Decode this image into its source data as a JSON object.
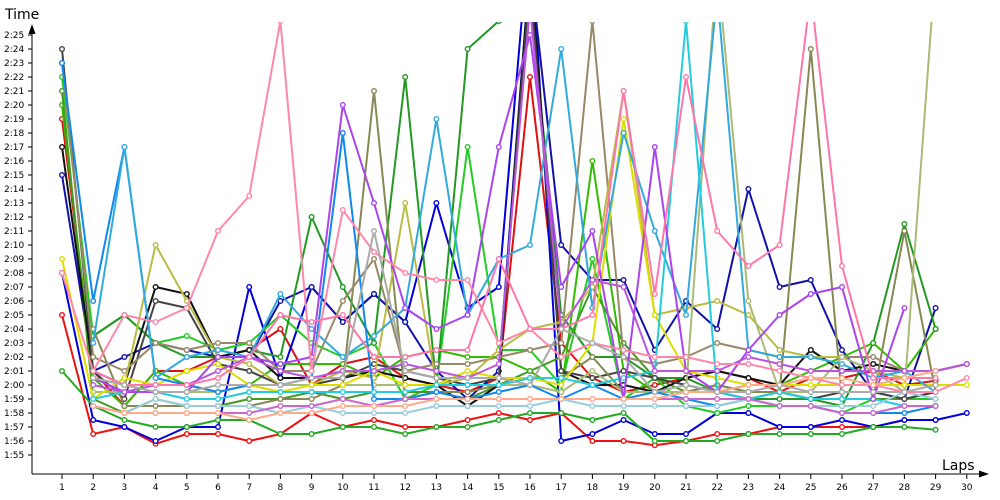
{
  "chart_data": {
    "type": "line",
    "ylabel": "Time",
    "xlabel": "Laps",
    "x": [
      1,
      2,
      3,
      4,
      5,
      6,
      7,
      8,
      9,
      10,
      11,
      12,
      13,
      14,
      15,
      16,
      17,
      18,
      19,
      20,
      21,
      22,
      23,
      24,
      25,
      26,
      27,
      28,
      29,
      30
    ],
    "x_ticks": [
      "1",
      "2",
      "3",
      "4",
      "5",
      "6",
      "7",
      "8",
      "9",
      "10",
      "11",
      "12",
      "13",
      "14",
      "15",
      "16",
      "17",
      "18",
      "19",
      "20",
      "21",
      "22",
      "23",
      "24",
      "25",
      "26",
      "27",
      "28",
      "29",
      "30"
    ],
    "y_ticks": [
      "1:55",
      "1:56",
      "1:57",
      "1:58",
      "1:59",
      "2:00",
      "2:01",
      "2:02",
      "2:03",
      "2:04",
      "2:05",
      "2:06",
      "2:07",
      "2:08",
      "2:09",
      "2:10",
      "2:11",
      "2:12",
      "2:13",
      "2:14",
      "2:15",
      "2:16",
      "2:17",
      "2:18",
      "2:19",
      "2:20",
      "2:21",
      "2:22",
      "2:23",
      "2:24",
      "2:25"
    ],
    "y_unit": "seconds",
    "ylim": [
      114.3,
      146.5
    ],
    "grid": false,
    "legend": "none",
    "series": [
      {
        "color": "#ee1111",
        "values": [
          125,
          116.5,
          117,
          115.8,
          116.5,
          116.5,
          116,
          116.5,
          118,
          117,
          117.5,
          117,
          117,
          117.5,
          118,
          117.5,
          118,
          116,
          116,
          115.7,
          116,
          116.5,
          116.5,
          117,
          117,
          117,
          117,
          117.5,
          117.5,
          null
        ]
      },
      {
        "color": "#dd1111",
        "values": [
          139,
          121,
          118.5,
          121,
          121,
          122,
          122.5,
          124,
          120,
          121.5,
          122,
          120.5,
          120,
          119.5,
          120.5,
          142,
          123,
          120.5,
          119.5,
          120,
          120.5,
          121,
          120.5,
          119.5,
          120.5,
          120.5,
          121,
          120,
          120.3,
          null
        ]
      },
      {
        "color": "#0000dd",
        "values": [
          128,
          117.5,
          117,
          116,
          117,
          117,
          127,
          120.5,
          127,
          124.5,
          126.5,
          124.5,
          133,
          125.5,
          127,
          153,
          116,
          116.5,
          117.5,
          116.5,
          116.5,
          118,
          118,
          117,
          117,
          117.5,
          117,
          117.5,
          117.5,
          118
        ]
      },
      {
        "color": "#1111aa",
        "values": [
          135,
          121,
          122,
          123,
          122.5,
          122,
          122,
          126,
          127,
          124.5,
          126.5,
          124.5,
          121,
          119,
          121,
          150,
          130,
          127.5,
          127.5,
          122.5,
          126,
          124,
          134,
          127,
          127.5,
          122.5,
          119.5,
          119,
          125.5,
          null
        ]
      },
      {
        "color": "#22aa22",
        "values": [
          121,
          118.5,
          117.5,
          117,
          117,
          117.5,
          117.5,
          116.5,
          116.5,
          117,
          117,
          116.5,
          117,
          117,
          117.5,
          118,
          118,
          117.5,
          118,
          116,
          116,
          116,
          116.5,
          116.5,
          116.5,
          116.5,
          117,
          117,
          116.8,
          null
        ]
      },
      {
        "color": "#22cc22",
        "values": [
          142,
          123.5,
          125,
          123,
          123.5,
          122.5,
          123,
          125,
          123,
          122,
          123,
          119,
          120,
          137,
          122.5,
          122.5,
          120,
          129,
          119,
          120.5,
          118.5,
          118,
          118.5,
          118.5,
          118.5,
          118,
          119,
          119,
          119,
          null
        ]
      },
      {
        "color": "#33bb00",
        "values": [
          140,
          120.5,
          118.5,
          121,
          120,
          119.5,
          120,
          121.5,
          121.5,
          121.5,
          120.5,
          122,
          122.5,
          122,
          122,
          121,
          119.5,
          136,
          121,
          119.5,
          119.5,
          119.5,
          120,
          120,
          121,
          122,
          123,
          121,
          124,
          null
        ]
      },
      {
        "color": "#229922",
        "values": [
          null,
          123.5,
          125,
          123,
          122,
          122,
          122.5,
          122,
          132,
          127,
          123,
          142,
          120,
          144,
          146,
          148,
          125,
          122,
          122,
          120.5,
          120.5,
          119.5,
          119,
          119,
          119,
          118.5,
          123,
          131.5,
          124,
          null
        ]
      },
      {
        "color": "#449922",
        "values": [
          141,
          119,
          118,
          119,
          118.5,
          118.5,
          119,
          119,
          119.5,
          119,
          119.5,
          119.5,
          119.5,
          119,
          120,
          121,
          122,
          127,
          123,
          120.5,
          119.5,
          120,
          119.5,
          119.5,
          119,
          119,
          119,
          119,
          119.5,
          null
        ]
      },
      {
        "color": "#111111",
        "values": [
          137,
          121,
          120,
          127,
          126.5,
          122,
          122.5,
          120.5,
          120.5,
          120.5,
          121,
          120.5,
          120,
          118.5,
          120,
          150,
          121,
          120,
          120,
          119.5,
          120.5,
          121,
          120.5,
          120,
          122.5,
          121,
          121.5,
          121,
          121,
          121.5
        ]
      },
      {
        "color": "#444444",
        "values": [
          144,
          121,
          119,
          126,
          125.5,
          121.5,
          121,
          120,
          120,
          120.5,
          121.5,
          121,
          120.5,
          120,
          120.5,
          149,
          121,
          120.5,
          121,
          120.5,
          120,
          119.5,
          119,
          119.5,
          119,
          119.5,
          119.5,
          119,
          119.5,
          null
        ]
      },
      {
        "color": "#888855",
        "values": [
          null,
          124,
          118.5,
          118.5,
          118.5,
          118.5,
          118.5,
          119,
          119,
          120,
          141,
          119,
          119.5,
          119.5,
          120,
          120.5,
          120.5,
          122,
          119.5,
          119.5,
          119.5,
          120,
          119.5,
          119.5,
          144,
          119,
          119,
          131,
          119.5,
          null
        ]
      },
      {
        "color": "#998866",
        "values": [
          143,
          122,
          121,
          123,
          122.5,
          123,
          123,
          121,
          121,
          126,
          129,
          121,
          121.5,
          121.5,
          122,
          122.5,
          123,
          146,
          122,
          121.5,
          122,
          123,
          122.5,
          122,
          122,
          122,
          122,
          121,
          121,
          121.5
        ]
      },
      {
        "color": "#bbbb44",
        "values": [
          null,
          120.5,
          120,
          130,
          126,
          122,
          121.5,
          120,
          120,
          121,
          120.5,
          133,
          120,
          120.5,
          122.5,
          124,
          124.5,
          127,
          141,
          125,
          125.5,
          126,
          125,
          122.5,
          122,
          122,
          121,
          120.5,
          120.5,
          null
        ]
      },
      {
        "color": "#aabb77",
        "values": [
          null,
          119.5,
          119.5,
          119.5,
          119.5,
          119.5,
          120,
          120,
          120,
          120,
          120,
          120,
          120,
          120,
          120,
          120,
          119.5,
          121,
          119.5,
          119.5,
          119.5,
          150,
          126,
          119.5,
          119.5,
          122,
          121,
          119.5,
          150,
          null
        ]
      },
      {
        "color": "#dddd00",
        "values": [
          129,
          119,
          120.5,
          120,
          121,
          121.5,
          120,
          119.5,
          120,
          120,
          121,
          120,
          120,
          121,
          120.5,
          120.5,
          120,
          123,
          139,
          125,
          121,
          120.5,
          120,
          120,
          120,
          120,
          120,
          120,
          120,
          120
        ]
      },
      {
        "color": "#1188ee",
        "values": [
          143,
          126,
          137,
          120.5,
          120,
          119.5,
          120,
          120,
          120.5,
          138,
          119,
          119,
          119.5,
          119,
          119.5,
          120,
          119,
          120,
          119,
          119.5,
          119,
          118.5,
          119,
          118.5,
          118.5,
          118,
          118,
          118,
          118.5,
          null
        ]
      },
      {
        "color": "#33aadd",
        "values": [
          null,
          123,
          137,
          120.5,
          122,
          122.5,
          122,
          126.5,
          124,
          122,
          123.5,
          125.5,
          139,
          125,
          129,
          130,
          144,
          125.5,
          138,
          131,
          125,
          148,
          122.5,
          122,
          122,
          121.5,
          120.5,
          121,
          119.5,
          null
        ]
      },
      {
        "color": "#22ccdd",
        "values": [
          null,
          119,
          119.5,
          119.5,
          119,
          119,
          119.5,
          119.5,
          119.5,
          119.5,
          119.5,
          119.5,
          120,
          120,
          120,
          120.5,
          120.5,
          120,
          120.5,
          121,
          146,
          119.5,
          119,
          119.5,
          119,
          119,
          119,
          118.5,
          118.5,
          null
        ]
      },
      {
        "color": "#99ccdd",
        "values": [
          null,
          118.5,
          118,
          119,
          118.5,
          118.5,
          118.5,
          118,
          118.5,
          118,
          118,
          118,
          118.5,
          118.5,
          118.5,
          118.5,
          119,
          118.5,
          118.5,
          118.5,
          118.5,
          118.5,
          119,
          118.5,
          118.5,
          118.5,
          118.5,
          119.5,
          119,
          null
        ]
      },
      {
        "color": "#aa44ee",
        "values": [
          null,
          120.5,
          119.5,
          119.5,
          119.5,
          122,
          122,
          121.5,
          122,
          140,
          133,
          125.5,
          124,
          125,
          137,
          145,
          127,
          131,
          119,
          137,
          121,
          119.5,
          122.5,
          125,
          126.5,
          127,
          119,
          125.5,
          null,
          null
        ]
      },
      {
        "color": "#bb55dd",
        "values": [
          null,
          120,
          119.5,
          120,
          120,
          121,
          122,
          121,
          120.5,
          121,
          121,
          121.5,
          121,
          120.5,
          121.5,
          147,
          124,
          127.5,
          127,
          121,
          121,
          121,
          122,
          121.5,
          121,
          121,
          121,
          121,
          121,
          121.5
        ]
      },
      {
        "color": "#cc66cc",
        "values": [
          null,
          118.5,
          118,
          118,
          118,
          118,
          118,
          118.5,
          118.5,
          119,
          118.5,
          119,
          119,
          119,
          119,
          119,
          119,
          119,
          119,
          119,
          119,
          119,
          119,
          118.5,
          118.5,
          118,
          118,
          118.5,
          118.5,
          null
        ]
      },
      {
        "color": "#ff88aa",
        "values": [
          128,
          121,
          125,
          124.5,
          125.5,
          131,
          133.5,
          146,
          121,
          132.5,
          129.5,
          128,
          127.5,
          127.5,
          123,
          124,
          122,
          123,
          122.5,
          122,
          122,
          121.5,
          121.5,
          121,
          120.5,
          120,
          120,
          119.5,
          119.5,
          120.5
        ]
      },
      {
        "color": "#ff77aa",
        "values": [
          null,
          121,
          120,
          120,
          120,
          120.5,
          122,
          125,
          124.5,
          125,
          122,
          122,
          122.5,
          122.5,
          129,
          124,
          124,
          125,
          141,
          126.5,
          142,
          131,
          128.5,
          130,
          148,
          128.5,
          120.5,
          120.5,
          120.5,
          null
        ]
      },
      {
        "color": "#ffaa88",
        "values": [
          null,
          118.5,
          118,
          118,
          118,
          118,
          117.5,
          118,
          118,
          118.5,
          118.5,
          118.5,
          119,
          119,
          119,
          119,
          119,
          119,
          119,
          119,
          119.5,
          119.5,
          120,
          120,
          120.5,
          120.5,
          120,
          120.5,
          121,
          null
        ]
      },
      {
        "color": "#aaaaaa",
        "values": [
          null,
          120.5,
          120,
          119.5,
          119.5,
          120,
          120,
          120,
          120.5,
          120.5,
          131,
          121,
          120.5,
          120.5,
          120.5,
          120,
          124,
          123,
          122,
          119.5,
          120,
          119.5,
          119.5,
          120,
          119.5,
          119.5,
          119.5,
          119.5,
          120,
          null
        ]
      }
    ]
  }
}
